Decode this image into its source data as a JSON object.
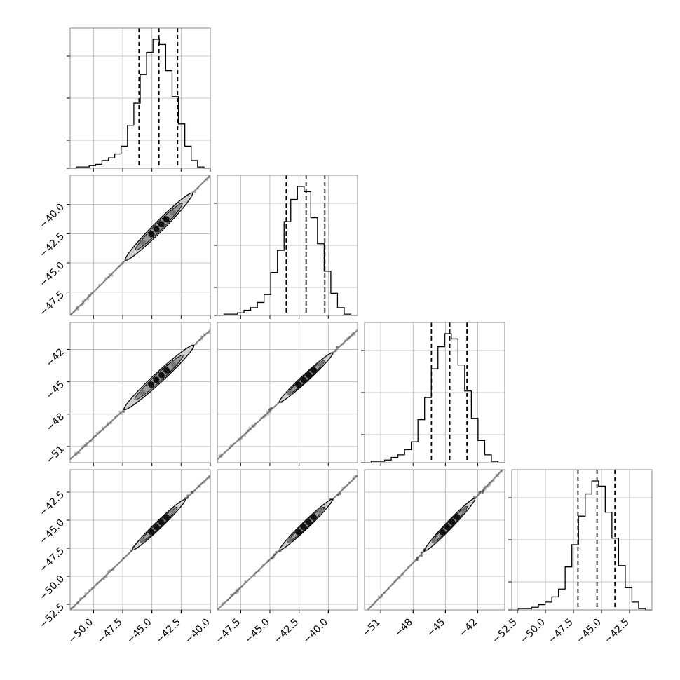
{
  "chart_data": {
    "type": "corner",
    "grid": true,
    "n_params": 4,
    "panel_frame_color": "#888888",
    "grid_color": "#b0b0b0",
    "line_color": "#000000",
    "ranges": [
      [
        -52.0,
        -40.0
      ],
      [
        -49.5,
        -37.5
      ],
      [
        -52.5,
        -39.5
      ],
      [
        -53.0,
        -40.5
      ]
    ],
    "ticks": [
      {
        "values": [
          -50.0,
          -47.5,
          -45.0,
          -42.5,
          -40.0
        ],
        "labels": [
          "−50.0",
          "−47.5",
          "−45.0",
          "−42.5",
          "−40.0"
        ]
      },
      {
        "values": [
          -47.5,
          -45.0,
          -42.5,
          -40.0
        ],
        "labels": [
          "−47.5",
          "−45.0",
          "−42.5",
          "−40.0"
        ]
      },
      {
        "values": [
          -51,
          -48,
          -45,
          -42
        ],
        "labels": [
          "−51",
          "−48",
          "−45",
          "−42"
        ]
      },
      {
        "values": [
          -52.5,
          -50.0,
          -47.5,
          -45.0,
          -42.5
        ],
        "labels": [
          "−52.5",
          "−50.0",
          "−47.5",
          "−45.0",
          "−42.5"
        ]
      }
    ],
    "histograms": [
      {
        "quantiles": [
          -46.1,
          -44.4,
          -42.8
        ],
        "counts": [
          0,
          1,
          1,
          2,
          3,
          6,
          8,
          11,
          17,
          33,
          50,
          72,
          89,
          99,
          95,
          75,
          55,
          34,
          17,
          6,
          1,
          0
        ]
      },
      {
        "quantiles": [
          -43.6,
          -41.9,
          -40.3
        ],
        "counts": [
          0,
          1,
          1,
          2,
          4,
          6,
          10,
          16,
          33,
          50,
          72,
          89,
          99,
          95,
          75,
          55,
          34,
          17,
          6,
          1,
          0
        ]
      },
      {
        "quantiles": [
          -46.3,
          -44.6,
          -43.0
        ],
        "counts": [
          0,
          1,
          1,
          2,
          4,
          6,
          10,
          16,
          33,
          50,
          72,
          89,
          99,
          95,
          75,
          55,
          34,
          17,
          6,
          1,
          0
        ]
      },
      {
        "quantiles": [
          -47.1,
          -45.4,
          -43.8
        ],
        "counts": [
          0,
          1,
          1,
          2,
          4,
          6,
          10,
          16,
          33,
          50,
          72,
          89,
          99,
          95,
          75,
          55,
          34,
          17,
          6,
          1,
          0
        ]
      }
    ],
    "correlation_means": [
      -44.4,
      -41.9,
      -44.6,
      -45.4
    ]
  }
}
